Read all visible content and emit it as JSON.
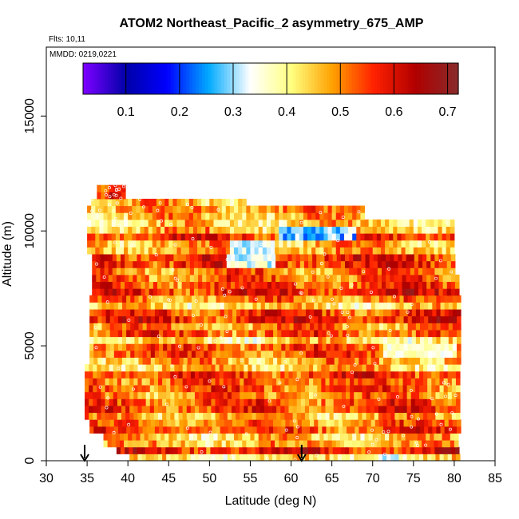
{
  "chart_data": {
    "type": "heatmap",
    "title": "ATOM2 Northeast_Pacific_2 asymmetry_675_AMP",
    "annotations": [
      "Flts: 10,11",
      "MMDD: 0219,0221"
    ],
    "xlabel": "Latitude (deg N)",
    "ylabel": "Altitude (m)",
    "xlim": [
      30,
      85
    ],
    "ylim": [
      0,
      18000
    ],
    "x_ticks": [
      "30",
      "35",
      "40",
      "45",
      "50",
      "55",
      "60",
      "65",
      "70",
      "75",
      "80",
      "85"
    ],
    "y_ticks": [
      "0",
      "5000",
      "10000",
      "15000"
    ],
    "y_tick_values": [
      0,
      5000,
      10000,
      15000
    ],
    "colorbar": {
      "range": [
        0.02,
        0.72
      ],
      "tick_labels": [
        "0.1",
        "0.2",
        "0.3",
        "0.4",
        "0.5",
        "0.6",
        "0.7"
      ],
      "tick_values": [
        0.1,
        0.2,
        0.3,
        0.4,
        0.5,
        0.6,
        0.7
      ]
    },
    "arrows_at_latitude": [
      34.7,
      61.3
    ],
    "grid": false,
    "colors": {
      "cmap": [
        "#7a00ff",
        "#0000a8",
        "#0000ff",
        "#00aaff",
        "#ffffff",
        "#ffff80",
        "#ffa000",
        "#ff2000",
        "#b00000",
        "#8a2a2a"
      ]
    }
  }
}
